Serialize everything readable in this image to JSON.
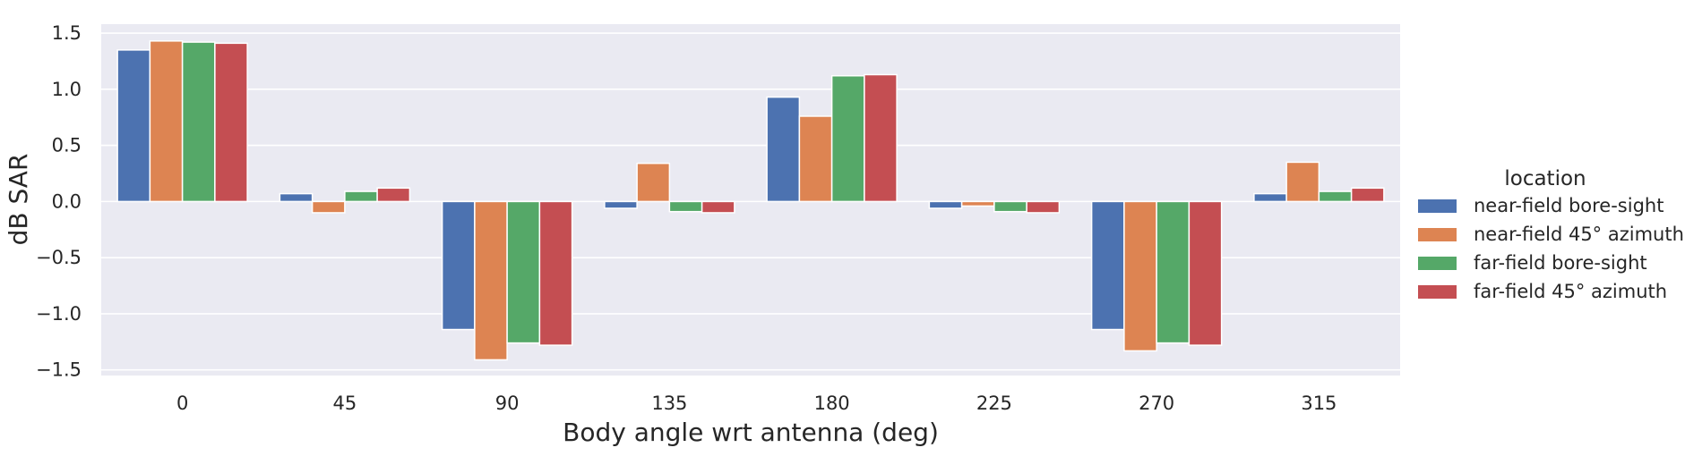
{
  "chart_data": {
    "type": "bar",
    "xlabel": "Body angle wrt antenna (deg)",
    "ylabel": "dB SAR",
    "categories": [
      "0",
      "45",
      "90",
      "135",
      "180",
      "225",
      "270",
      "315"
    ],
    "yticks": [
      "1.5",
      "1.0",
      "0.5",
      "0.0",
      "−0.5",
      "−1.0",
      "−1.5"
    ],
    "ytick_values": [
      1.5,
      1.0,
      0.5,
      0.0,
      -0.5,
      -1.0,
      -1.5
    ],
    "ylim": [
      -1.55,
      1.58
    ],
    "grid": true,
    "legend": {
      "title": "location",
      "placement": "right"
    },
    "series": [
      {
        "name": "near-field bore-sight",
        "color": "#4c72b0",
        "values": [
          1.35,
          0.07,
          -1.14,
          -0.06,
          0.93,
          -0.06,
          -1.14,
          0.07
        ]
      },
      {
        "name": "near-field 45° azimuth",
        "color": "#dd8452",
        "values": [
          1.43,
          -0.1,
          -1.41,
          0.34,
          0.76,
          -0.04,
          -1.33,
          0.35
        ]
      },
      {
        "name": "far-field bore-sight",
        "color": "#55a868",
        "values": [
          1.42,
          0.09,
          -1.26,
          -0.09,
          1.12,
          -0.09,
          -1.26,
          0.09
        ]
      },
      {
        "name": "far-field 45° azimuth",
        "color": "#c44e52",
        "values": [
          1.41,
          0.12,
          -1.28,
          -0.1,
          1.13,
          -0.1,
          -1.28,
          0.12
        ]
      }
    ]
  }
}
